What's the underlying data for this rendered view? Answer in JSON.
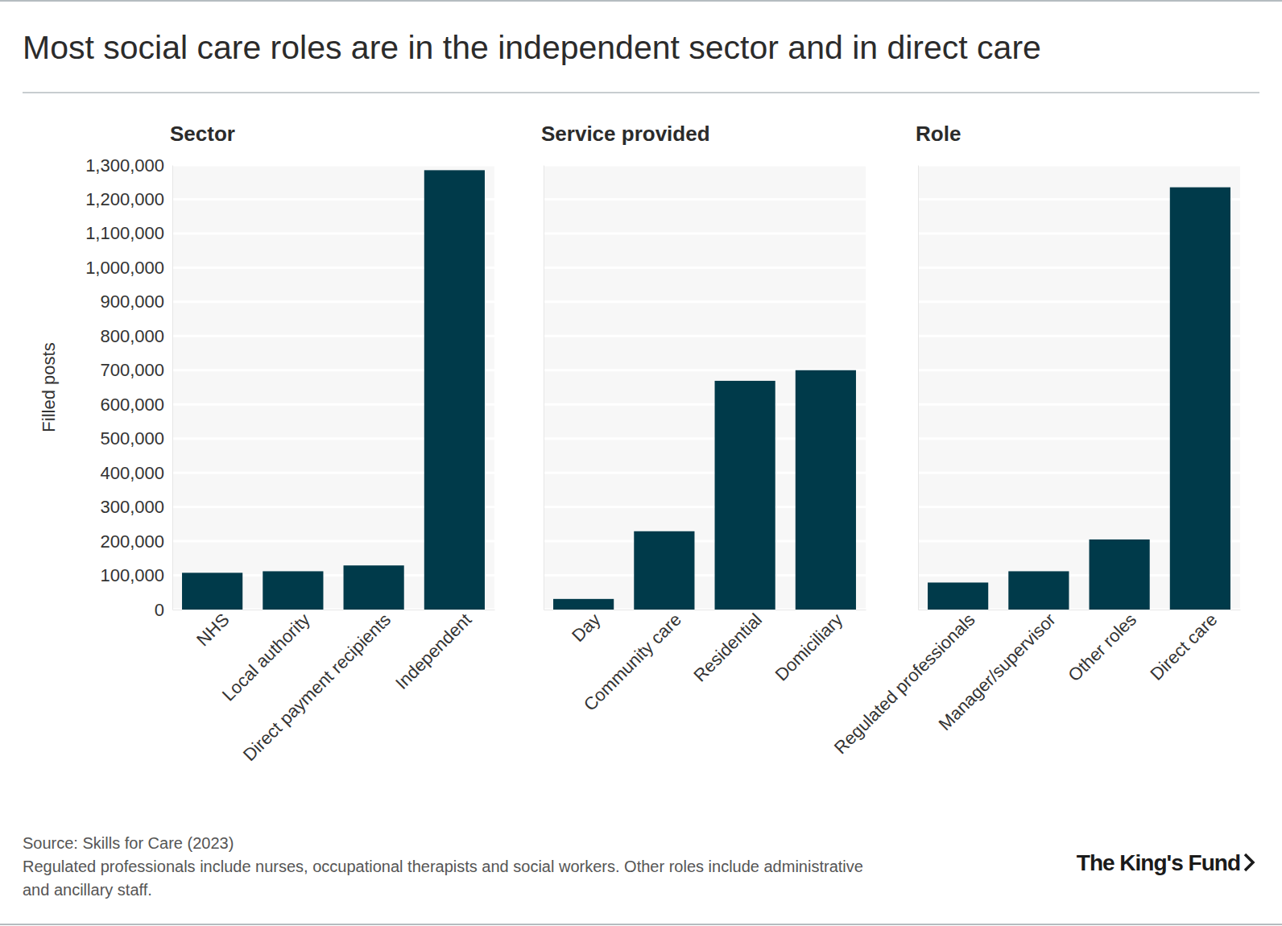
{
  "title": "Most social care roles are in the independent sector and in direct care",
  "source": "Source: Skills for Care (2023)",
  "note": [
    "Regulated professionals include nurses, occupational therapists and social workers. Other roles include administrative",
    "and ancillary staff."
  ],
  "brand": "The King's Fund",
  "chart_data": [
    {
      "type": "bar",
      "title": "Sector",
      "y_label": "Filled posts",
      "categories": [
        "NHS",
        "Local authority",
        "Direct payment recipients",
        "Independent"
      ],
      "values": [
        107500,
        112000,
        129000,
        1285000
      ],
      "color": "#003a4a",
      "ylim": [
        0,
        1300000
      ],
      "yticks": [
        0,
        {
          "value": 100000,
          "label": "100,000"
        },
        {
          "value": 200000,
          "label": "200,000"
        },
        {
          "value": 300000,
          "label": "300,000"
        },
        {
          "value": 400000,
          "label": "400,000"
        },
        {
          "value": 500000,
          "label": "500,000"
        },
        {
          "value": 600000,
          "label": "600,000"
        },
        {
          "value": 700000,
          "label": "700,000"
        },
        {
          "value": 800000,
          "label": "800,000"
        },
        {
          "value": 900000,
          "label": "900,000"
        },
        {
          "value": 1000000,
          "label": "1,000,000"
        },
        {
          "value": 1100000,
          "label": "1,100,000"
        },
        {
          "value": 1200000,
          "label": "1,200,000"
        },
        {
          "value": 1300000,
          "label": "1,300,000"
        }
      ],
      "grid": true
    },
    {
      "type": "bar",
      "title": "Service provided",
      "categories": [
        "Day",
        "Community care",
        "Residential",
        "Domiciliary"
      ],
      "values": [
        31000,
        229000,
        669000,
        700000
      ],
      "color": "#003a4a",
      "ylim": [
        0,
        1300000
      ],
      "yticks": [
        0,
        100000,
        200000,
        300000,
        400000,
        500000,
        600000,
        700000,
        800000,
        900000,
        1000000,
        1100000,
        1200000,
        1300000
      ],
      "grid": true,
      "tick_labels": "x"
    },
    {
      "type": "bar",
      "title": "Role",
      "categories": [
        "Regulated professionals",
        "Manager/supervisor",
        "Other roles",
        "Direct care"
      ],
      "values": [
        79000,
        112000,
        205000,
        1235000
      ],
      "color": "#003a4a",
      "ylim": [
        0,
        1300000
      ],
      "yticks": [
        0,
        100000,
        200000,
        300000,
        400000,
        500000,
        600000,
        700000,
        800000,
        900000,
        1000000,
        1100000,
        1200000,
        1300000
      ],
      "grid": true,
      "tick_labels": "x"
    }
  ]
}
